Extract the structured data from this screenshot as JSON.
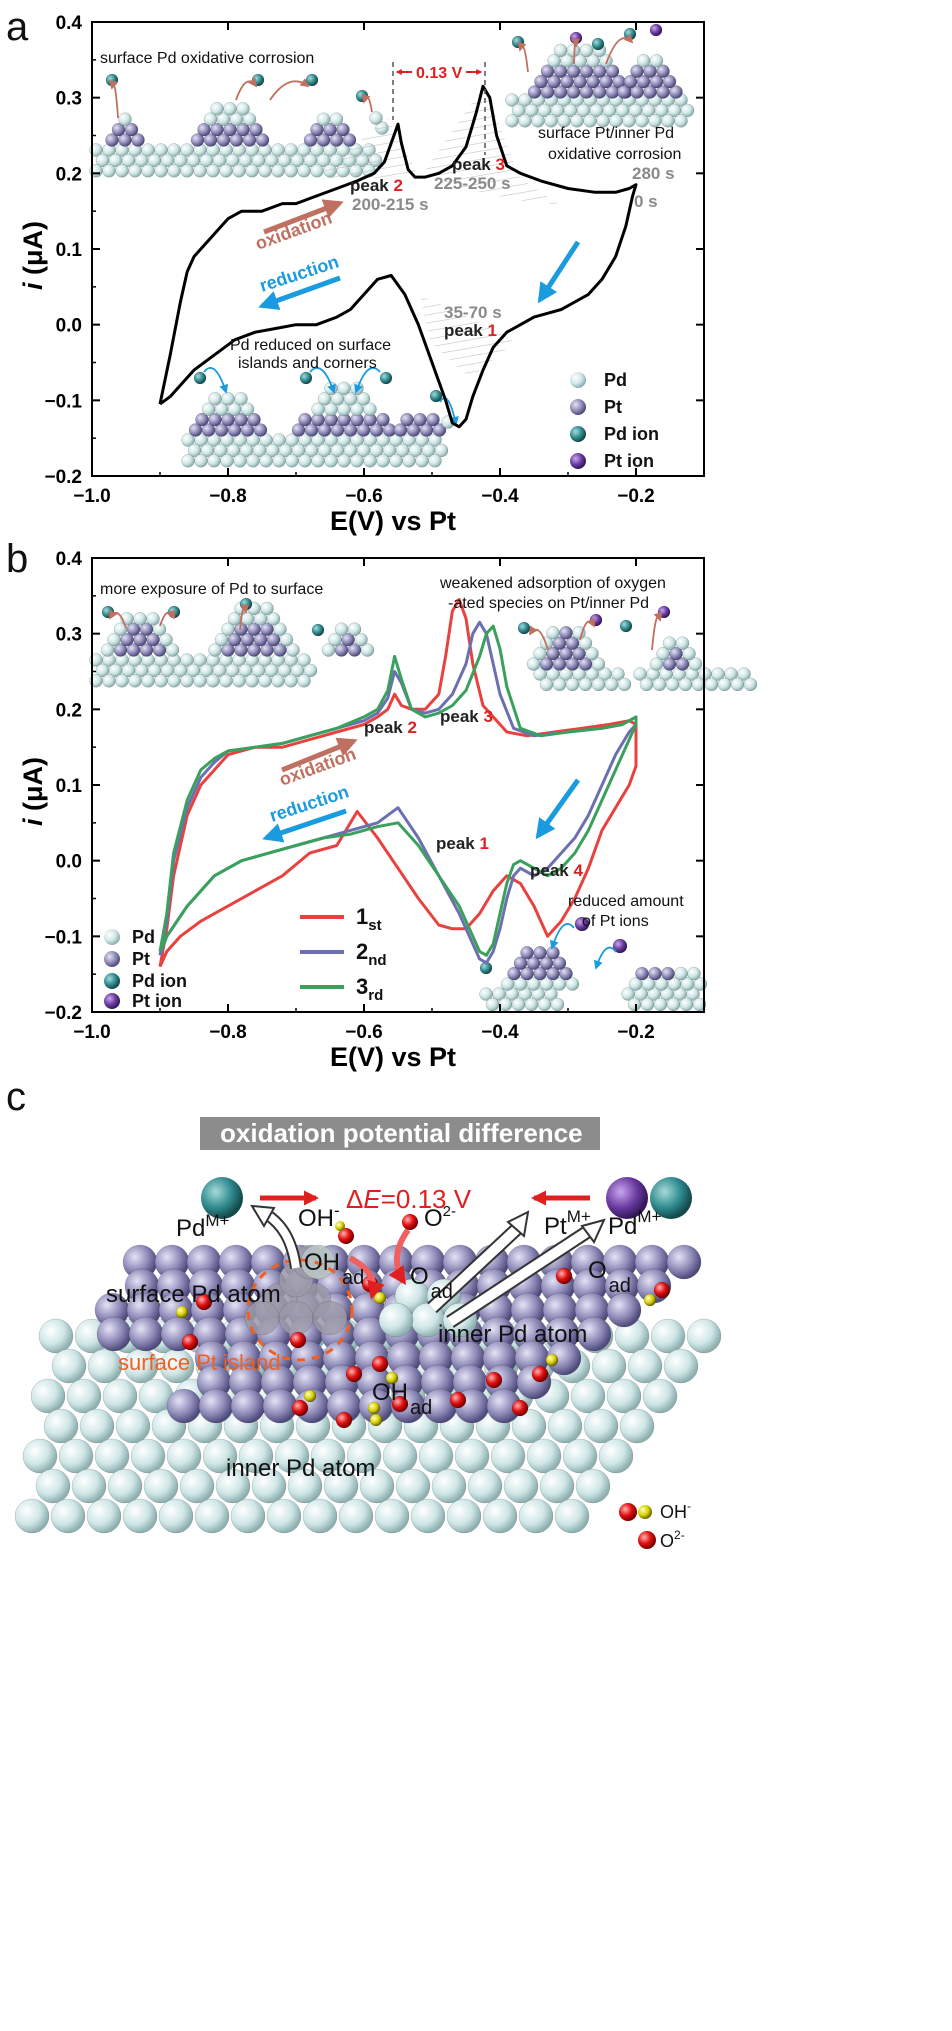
{
  "panels": {
    "a": {
      "letter": "a",
      "annotations": {
        "top_left": "surface Pd oxidative corrosion",
        "delta_e": "0.13 V",
        "top_right_line1": "surface Pt/inner Pd",
        "top_right_line2": "oxidative corrosion",
        "time_280": "280 s",
        "time_0": "0 s",
        "peak2_label": "peak",
        "peak2_num": "2",
        "peak2_time": "200-215 s",
        "peak3_label": "peak",
        "peak3_num": "3",
        "peak3_time": "225-250 s",
        "peak1_time": "35-70 s",
        "peak1_label": "peak",
        "peak1_num": "1",
        "oxidation": "oxidation",
        "reduction": "reduction",
        "bottom_note_line1": "Pd reduced on surface",
        "bottom_note_line2": "islands and corners"
      },
      "legend": [
        "Pd",
        "Pt",
        "Pd ion",
        "Pt  ion"
      ]
    },
    "b": {
      "letter": "b",
      "annotations": {
        "top_left": "more exposure of Pd to surface",
        "top_right_line1": "weakened adsorption of oxygen",
        "top_right_line2": "-ated species on Pt/inner Pd",
        "peak2_label": "peak",
        "peak2_num": "2",
        "peak3_label": "peak",
        "peak3_num": "3",
        "peak1_label": "peak",
        "peak1_num": "1",
        "peak4_label": "peak",
        "peak4_num": "4",
        "oxidation": "oxidation",
        "reduction": "reduction",
        "bottom_right_line1": "reduced amount",
        "bottom_right_line2": "of Pt ions"
      },
      "legend": [
        "Pd",
        "Pt",
        "Pd ion",
        "Pt  ion"
      ],
      "series_legend": [
        {
          "main": "1",
          "sub": "st"
        },
        {
          "main": "2",
          "sub": "nd"
        },
        {
          "main": "3",
          "sub": "rd"
        }
      ]
    },
    "c": {
      "letter": "c",
      "banner": "oxidation potential difference",
      "delta_prefix": "Δ",
      "delta_e_symbol": "E",
      "delta_value": "=0.13 V",
      "labels": {
        "pd_ion": "Pd",
        "pd_ion_sup": "M+",
        "oh": "OH",
        "oh_sup": "-",
        "o2": "O",
        "o2_sup": "2-",
        "pt_ion": "Pt",
        "pt_ion_sup": "M+",
        "pd_ion2": "Pd",
        "pd_ion2_sup": "M+",
        "oh_ad": "OH",
        "oh_ad_sub": "ad",
        "o_ad": "O",
        "o_ad_sub": "ad",
        "o_ad2": "O",
        "o_ad2_sub": "ad",
        "oh_ad2": "OH",
        "oh_ad2_sub": "ad",
        "surface_pd_atom": "surface Pd atom",
        "surface_pt_island": "surface Pt island",
        "inner_pd_atom_top": "inner Pd atom",
        "inner_pd_atom_bottom": "inner Pd atom",
        "legend_oh": "OH",
        "legend_oh_sup": "-",
        "legend_o": "O",
        "legend_o_sup": "2-"
      }
    }
  },
  "colors": {
    "pd": "#cfe6e6",
    "pt": "#8e8bb8",
    "pd_ion": "#2e8a8e",
    "pt_ion": "#6a3aa0",
    "red_accent": "#e02020",
    "blue_arrow": "#1a9be0",
    "oxidation_arrow": "#c07060",
    "series_1st": "#e8423f",
    "series_2nd": "#6c6fb0",
    "series_3rd": "#3aa15d"
  },
  "chart_data": [
    {
      "type": "line",
      "panel": "a",
      "xlabel": "E(V) vs Pt",
      "ylabel": "i (μA)",
      "xlim": [
        -1.0,
        -0.1
      ],
      "ylim": [
        -0.2,
        0.4
      ],
      "xticks": [
        "-1.0",
        "-0.8",
        "-0.6",
        "-0.4",
        "-0.2"
      ],
      "yticks": [
        "-0.2",
        "-0.1",
        "0.0",
        "0.1",
        "0.2",
        "0.3",
        "0.4"
      ],
      "series": [
        {
          "x": [
            -0.9,
            -0.885,
            -0.87,
            -0.86,
            -0.85,
            -0.84,
            -0.82,
            -0.8,
            -0.78,
            -0.75,
            -0.72,
            -0.7,
            -0.67,
            -0.64,
            -0.61,
            -0.585,
            -0.57,
            -0.56,
            -0.55,
            -0.545,
            -0.535,
            -0.525,
            -0.51,
            -0.49,
            -0.47,
            -0.45,
            -0.435,
            -0.425,
            -0.415,
            -0.405,
            -0.39,
            -0.37,
            -0.34,
            -0.3,
            -0.26,
            -0.23,
            -0.21,
            -0.2,
            -0.205,
            -0.215,
            -0.23,
            -0.25,
            -0.27,
            -0.29,
            -0.31,
            -0.33,
            -0.35,
            -0.37,
            -0.39,
            -0.41,
            -0.425,
            -0.44,
            -0.45,
            -0.46,
            -0.47,
            -0.48,
            -0.5,
            -0.52,
            -0.54,
            -0.56,
            -0.58,
            -0.6,
            -0.62,
            -0.64,
            -0.67,
            -0.7,
            -0.73,
            -0.76,
            -0.79,
            -0.82,
            -0.85,
            -0.87,
            -0.885,
            -0.9
          ],
          "y": [
            -0.105,
            -0.04,
            0.03,
            0.07,
            0.09,
            0.1,
            0.12,
            0.14,
            0.15,
            0.15,
            0.16,
            0.16,
            0.17,
            0.18,
            0.19,
            0.2,
            0.215,
            0.24,
            0.265,
            0.24,
            0.205,
            0.195,
            0.195,
            0.2,
            0.21,
            0.235,
            0.28,
            0.315,
            0.3,
            0.25,
            0.21,
            0.2,
            0.19,
            0.18,
            0.175,
            0.175,
            0.18,
            0.185,
            0.17,
            0.13,
            0.09,
            0.06,
            0.04,
            0.03,
            0.02,
            0.015,
            0.01,
            0.0,
            -0.01,
            -0.03,
            -0.06,
            -0.095,
            -0.125,
            -0.135,
            -0.13,
            -0.1,
            -0.05,
            0.0,
            0.04,
            0.065,
            0.06,
            0.04,
            0.02,
            0.01,
            0.0,
            0.0,
            -0.005,
            -0.01,
            -0.02,
            -0.04,
            -0.06,
            -0.08,
            -0.095,
            -0.105
          ]
        }
      ]
    },
    {
      "type": "line",
      "panel": "b",
      "xlabel": "E(V) vs Pt",
      "ylabel": "i (μA)",
      "xlim": [
        -1.0,
        -0.1
      ],
      "ylim": [
        -0.2,
        0.4
      ],
      "xticks": [
        "-1.0",
        "-0.8",
        "-0.6",
        "-0.4",
        "-0.2"
      ],
      "yticks": [
        "-0.2",
        "-0.1",
        "0.0",
        "0.1",
        "0.2",
        "0.3",
        "0.4"
      ],
      "series": [
        {
          "name": "1st",
          "x": [
            -0.9,
            -0.89,
            -0.88,
            -0.86,
            -0.84,
            -0.82,
            -0.8,
            -0.76,
            -0.72,
            -0.68,
            -0.64,
            -0.6,
            -0.58,
            -0.565,
            -0.555,
            -0.545,
            -0.53,
            -0.51,
            -0.49,
            -0.48,
            -0.47,
            -0.46,
            -0.45,
            -0.44,
            -0.425,
            -0.41,
            -0.39,
            -0.36,
            -0.32,
            -0.28,
            -0.24,
            -0.21,
            -0.2,
            -0.2,
            -0.21,
            -0.23,
            -0.25,
            -0.27,
            -0.29,
            -0.31,
            -0.33,
            -0.35,
            -0.37,
            -0.39,
            -0.41,
            -0.43,
            -0.45,
            -0.47,
            -0.49,
            -0.52,
            -0.55,
            -0.58,
            -0.61,
            -0.64,
            -0.68,
            -0.72,
            -0.76,
            -0.8,
            -0.84,
            -0.87,
            -0.89,
            -0.9
          ],
          "y": [
            -0.14,
            -0.09,
            -0.02,
            0.06,
            0.1,
            0.12,
            0.14,
            0.15,
            0.15,
            0.16,
            0.17,
            0.18,
            0.19,
            0.2,
            0.22,
            0.205,
            0.2,
            0.2,
            0.22,
            0.27,
            0.33,
            0.345,
            0.32,
            0.26,
            0.205,
            0.19,
            0.17,
            0.165,
            0.17,
            0.175,
            0.18,
            0.185,
            0.18,
            0.125,
            0.1,
            0.07,
            0.04,
            -0.01,
            -0.05,
            -0.08,
            -0.1,
            -0.06,
            -0.03,
            -0.02,
            -0.04,
            -0.07,
            -0.09,
            -0.09,
            -0.085,
            -0.05,
            -0.01,
            0.03,
            0.065,
            0.02,
            0.01,
            -0.02,
            -0.04,
            -0.06,
            -0.08,
            -0.1,
            -0.12,
            -0.14
          ]
        },
        {
          "name": "2nd",
          "x": [
            -0.9,
            -0.89,
            -0.88,
            -0.86,
            -0.84,
            -0.82,
            -0.8,
            -0.76,
            -0.72,
            -0.68,
            -0.64,
            -0.6,
            -0.58,
            -0.565,
            -0.555,
            -0.545,
            -0.53,
            -0.51,
            -0.49,
            -0.47,
            -0.45,
            -0.44,
            -0.43,
            -0.42,
            -0.41,
            -0.4,
            -0.38,
            -0.35,
            -0.3,
            -0.25,
            -0.22,
            -0.2,
            -0.2,
            -0.21,
            -0.23,
            -0.25,
            -0.27,
            -0.29,
            -0.31,
            -0.33,
            -0.35,
            -0.37,
            -0.38,
            -0.39,
            -0.4,
            -0.41,
            -0.42,
            -0.43,
            -0.44,
            -0.46,
            -0.49,
            -0.52,
            -0.55,
            -0.58,
            -0.62,
            -0.66,
            -0.7,
            -0.74,
            -0.78,
            -0.82,
            -0.86,
            -0.89,
            -0.9
          ],
          "y": [
            -0.125,
            -0.08,
            0.0,
            0.07,
            0.11,
            0.13,
            0.145,
            0.15,
            0.155,
            0.165,
            0.175,
            0.185,
            0.195,
            0.215,
            0.25,
            0.235,
            0.2,
            0.195,
            0.2,
            0.22,
            0.26,
            0.3,
            0.315,
            0.3,
            0.26,
            0.22,
            0.175,
            0.165,
            0.17,
            0.175,
            0.18,
            0.19,
            0.18,
            0.17,
            0.14,
            0.1,
            0.06,
            0.03,
            0.01,
            -0.01,
            -0.02,
            -0.01,
            -0.02,
            -0.05,
            -0.09,
            -0.12,
            -0.135,
            -0.13,
            -0.11,
            -0.07,
            -0.02,
            0.03,
            0.07,
            0.05,
            0.04,
            0.03,
            0.02,
            0.01,
            0.0,
            -0.02,
            -0.06,
            -0.1,
            -0.125
          ]
        },
        {
          "name": "3rd",
          "x": [
            -0.9,
            -0.89,
            -0.88,
            -0.86,
            -0.84,
            -0.82,
            -0.8,
            -0.76,
            -0.72,
            -0.68,
            -0.64,
            -0.6,
            -0.58,
            -0.565,
            -0.555,
            -0.545,
            -0.53,
            -0.51,
            -0.49,
            -0.47,
            -0.45,
            -0.43,
            -0.42,
            -0.41,
            -0.4,
            -0.39,
            -0.37,
            -0.34,
            -0.3,
            -0.25,
            -0.22,
            -0.2,
            -0.2,
            -0.21,
            -0.23,
            -0.25,
            -0.27,
            -0.29,
            -0.31,
            -0.33,
            -0.35,
            -0.37,
            -0.38,
            -0.39,
            -0.4,
            -0.41,
            -0.42,
            -0.43,
            -0.44,
            -0.46,
            -0.49,
            -0.52,
            -0.55,
            -0.58,
            -0.62,
            -0.66,
            -0.7,
            -0.74,
            -0.78,
            -0.82,
            -0.86,
            -0.89,
            -0.9
          ],
          "y": [
            -0.12,
            -0.07,
            0.01,
            0.08,
            0.12,
            0.135,
            0.145,
            0.15,
            0.155,
            0.165,
            0.175,
            0.19,
            0.2,
            0.225,
            0.27,
            0.24,
            0.2,
            0.19,
            0.195,
            0.205,
            0.225,
            0.27,
            0.3,
            0.31,
            0.28,
            0.23,
            0.175,
            0.165,
            0.17,
            0.175,
            0.18,
            0.19,
            0.18,
            0.16,
            0.12,
            0.08,
            0.04,
            0.01,
            -0.01,
            -0.02,
            -0.01,
            0.0,
            -0.005,
            -0.03,
            -0.07,
            -0.11,
            -0.125,
            -0.12,
            -0.1,
            -0.06,
            -0.02,
            0.02,
            0.05,
            0.045,
            0.035,
            0.03,
            0.02,
            0.01,
            0.0,
            -0.02,
            -0.06,
            -0.1,
            -0.12
          ]
        }
      ]
    }
  ]
}
